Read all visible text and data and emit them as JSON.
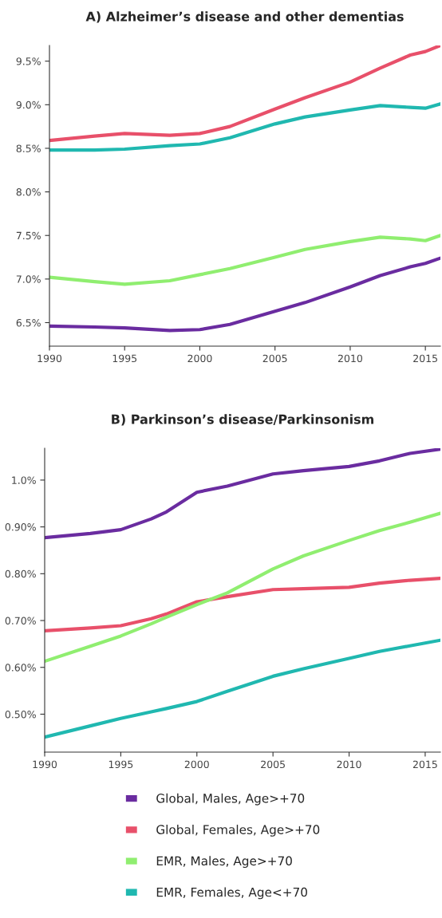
{
  "chart_data": [
    {
      "type": "line",
      "title": "A) Alzheimer’s disease and other dementias",
      "x": [
        1990,
        1993,
        1995,
        1998,
        2000,
        2002,
        2005,
        2007,
        2010,
        2012,
        2014,
        2015,
        2016
      ],
      "series": [
        {
          "color": "#6a2ca0",
          "values": [
            6.46,
            6.45,
            6.44,
            6.41,
            6.42,
            6.48,
            6.63,
            6.73,
            6.91,
            7.04,
            7.14,
            7.18,
            7.24
          ]
        },
        {
          "color": "#e8506a",
          "values": [
            8.59,
            8.64,
            8.67,
            8.65,
            8.67,
            8.75,
            8.95,
            9.08,
            9.26,
            9.42,
            9.57,
            9.61,
            9.68
          ]
        },
        {
          "color": "#90ee70",
          "values": [
            7.02,
            6.97,
            6.94,
            6.98,
            7.05,
            7.12,
            7.25,
            7.34,
            7.43,
            7.48,
            7.46,
            7.44,
            7.5
          ]
        },
        {
          "color": "#20b8b0",
          "values": [
            8.48,
            8.48,
            8.49,
            8.53,
            8.55,
            8.62,
            8.78,
            8.86,
            8.94,
            8.99,
            8.97,
            8.96,
            9.01
          ]
        }
      ],
      "xlim": [
        1990,
        2016
      ],
      "xticks": [
        1990,
        1995,
        2000,
        2005,
        2010,
        2015
      ],
      "ylim": [
        6.23,
        9.68
      ],
      "yticks": [
        {
          "value": 6.5,
          "label": "6.5%"
        },
        {
          "value": 7.0,
          "label": "7.0%"
        },
        {
          "value": 7.5,
          "label": "7.5%"
        },
        {
          "value": 8.0,
          "label": "8.0%"
        },
        {
          "value": 8.5,
          "label": "8.5%"
        },
        {
          "value": 9.0,
          "label": "9.0%"
        },
        {
          "value": 9.5,
          "label": "9.5%"
        }
      ],
      "grid": false,
      "legend": false,
      "marker": "none",
      "line_style": "solid"
    },
    {
      "type": "line",
      "title": "B) Parkinson’s disease/Parkinsonism",
      "x": [
        1990,
        1993,
        1995,
        1997,
        1998,
        2000,
        2002,
        2005,
        2007,
        2010,
        2012,
        2014,
        2016
      ],
      "series": [
        {
          "name": "Global, Males, Age>+70",
          "color": "#6a2ca0",
          "values": [
            0.877,
            0.886,
            0.894,
            0.917,
            0.932,
            0.974,
            0.987,
            1.013,
            1.02,
            1.029,
            1.041,
            1.057,
            1.066
          ]
        },
        {
          "name": "Global, Females, Age>+70",
          "color": "#e8506a",
          "values": [
            0.678,
            0.684,
            0.689,
            0.704,
            0.714,
            0.74,
            0.751,
            0.766,
            0.768,
            0.771,
            0.78,
            0.786,
            0.79
          ]
        },
        {
          "name": "EMR, Males, Age>+70",
          "color": "#90ee70",
          "values": [
            0.613,
            0.645,
            0.667,
            0.693,
            0.707,
            0.734,
            0.759,
            0.81,
            0.838,
            0.871,
            0.892,
            0.91,
            0.929
          ]
        },
        {
          "name": "EMR, Females, Age<+70",
          "color": "#20b8b0",
          "values": [
            0.451,
            0.475,
            0.491,
            0.505,
            0.512,
            0.527,
            0.549,
            0.581,
            0.597,
            0.619,
            0.634,
            0.646,
            0.658
          ]
        }
      ],
      "xlim": [
        1990,
        2016
      ],
      "xticks": [
        1990,
        1995,
        2000,
        2005,
        2010,
        2015
      ],
      "ylim": [
        0.419,
        1.068
      ],
      "yticks": [
        {
          "value": 0.5,
          "label": "0.50%"
        },
        {
          "value": 0.6,
          "label": "0.60%"
        },
        {
          "value": 0.7,
          "label": "0.70%"
        },
        {
          "value": 0.8,
          "label": "0.80%"
        },
        {
          "value": 0.9,
          "label": "0.90%"
        },
        {
          "value": 1.0,
          "label": "1.0%"
        }
      ],
      "grid": false,
      "legend": "bottom",
      "marker": "none",
      "line_style": "solid"
    }
  ]
}
